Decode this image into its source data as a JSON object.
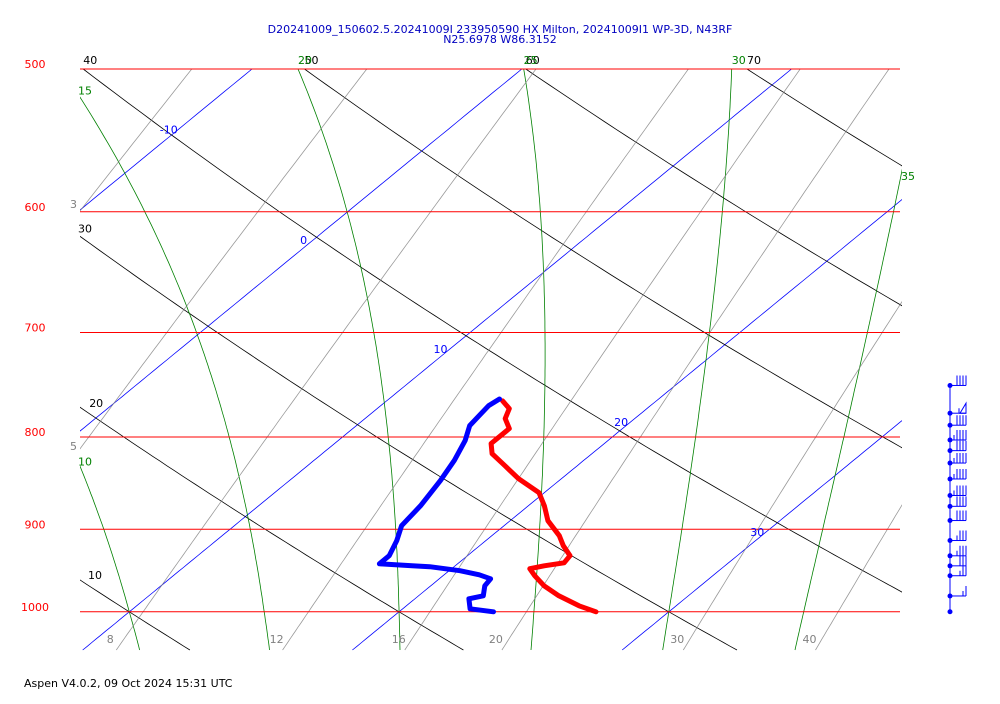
{
  "chart_data": {
    "type": "skewt",
    "title": "D20241009_150602.5.20241009I 233950590 HX Milton, 20241009I1 WP-3D, N43RF",
    "subtitle": "N25.6978 W86.3152",
    "footer": "Aspen V4.0.2, 09 Oct 2024  15:31 UTC",
    "ylim": [
      1050,
      500
    ],
    "log_y": true,
    "yticks": [
      500,
      600,
      700,
      800,
      900,
      1000
    ],
    "pressure_color": "#ff0000",
    "xlim": [
      9.9,
      40.3
    ],
    "isotherms": {
      "color": "#0000ff",
      "values": [
        -10,
        0,
        10,
        20,
        30
      ]
    },
    "dry_adiabats": {
      "color": "#000000",
      "values": [
        10,
        20,
        30,
        40,
        50,
        60,
        70
      ]
    },
    "moist_adiabats": {
      "color": "#008000",
      "values": [
        10,
        15,
        20,
        25,
        30,
        35
      ]
    },
    "mixing_ratios": {
      "color": "#808080",
      "values": [
        3,
        5,
        8,
        12,
        16,
        20,
        30,
        40
      ]
    },
    "series": [
      {
        "color": "#ff0000",
        "pressure": [
          1000,
          992.4,
          979.8,
          967.3,
          955,
          946.5,
          942.9,
          939.3,
          930.9,
          919.1,
          907.4,
          890.2,
          873.5,
          858.9,
          843.6,
          829.6,
          817.2,
          806.6,
          800.4,
          791.4,
          781.4,
          771.5,
          763.9
        ],
        "values": [
          27.3,
          26.4,
          25.2,
          24.2,
          23.4,
          22.9,
          23.3,
          23.9,
          23.8,
          23.1,
          22.5,
          21.4,
          20.6,
          19.8,
          18.4,
          17.3,
          16.3,
          15.8,
          15.8,
          15.8,
          15.2,
          14.9,
          14.3
        ]
      },
      {
        "color": "#0000ff",
        "pressure": [
          1000,
          996.2,
          983.5,
          979.8,
          967.3,
          958.7,
          953.8,
          948.9,
          944.1,
          942.9,
          940.5,
          930.9,
          913.3,
          895.9,
          873.5,
          845.8,
          824.1,
          803.4,
          788.4,
          778.5,
          768.7,
          762.1
        ],
        "values": [
          23.5,
          22.5,
          22.0,
          22.4,
          22.0,
          21.9,
          21.3,
          20.4,
          19.1,
          18.4,
          17.1,
          17.1,
          16.7,
          16.2,
          16.0,
          15.6,
          15.2,
          14.7,
          14.2,
          14.1,
          14.0,
          14.1
        ]
      }
    ],
    "winds": {
      "color": "#0000ff",
      "pressure": [
        749,
        776,
        788,
        803,
        814,
        827,
        844,
        862,
        874,
        890,
        913,
        931,
        943,
        955,
        980,
        1000
      ],
      "speed": [
        40,
        55,
        40,
        45,
        40,
        45,
        45,
        45,
        40,
        40,
        35,
        35,
        30,
        25,
        15,
        0
      ]
    }
  }
}
